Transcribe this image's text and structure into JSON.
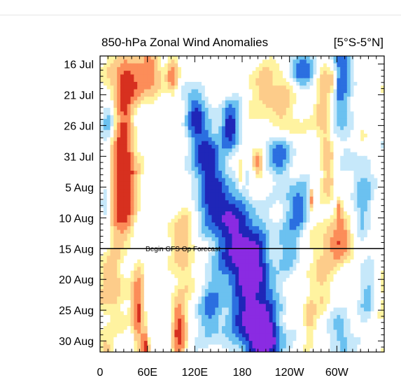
{
  "chart_data": {
    "type": "heatmap",
    "title": "850-hPa Zonal Wind Anomalies",
    "region_label": "[5°S-5°N]",
    "xlabel": "",
    "ylabel": "",
    "x_ticks": [
      {
        "lon": 0,
        "label": "0"
      },
      {
        "lon": 60,
        "label": "60E"
      },
      {
        "lon": 120,
        "label": "120E"
      },
      {
        "lon": 180,
        "label": "180"
      },
      {
        "lon": 240,
        "label": "120W"
      },
      {
        "lon": 300,
        "label": "60W"
      }
    ],
    "y_ticks": [
      {
        "day": 0,
        "label": "16 Jul"
      },
      {
        "day": 5,
        "label": "21 Jul"
      },
      {
        "day": 10,
        "label": "26 Jul"
      },
      {
        "day": 15,
        "label": "31 Jul"
      },
      {
        "day": 20,
        "label": "5 Aug"
      },
      {
        "day": 25,
        "label": "10 Aug"
      },
      {
        "day": 30,
        "label": "15 Aug"
      },
      {
        "day": 35,
        "label": "20 Aug"
      },
      {
        "day": 40,
        "label": "25 Aug"
      },
      {
        "day": 45,
        "label": "30 Aug"
      }
    ],
    "xlim": [
      0,
      360
    ],
    "ylim": [
      0,
      48
    ],
    "annotation": {
      "day": 30,
      "text": "Begin GFS Op Forecast"
    },
    "colors": {
      "strong_westerly": "#d7301f",
      "westerly": "#fc8d59",
      "weak_westerly": "#fdcc8a",
      "slight_westerly": "#fff3a0",
      "neutral": "#ffffff",
      "slight_easterly": "#c6e8fa",
      "weak_easterly": "#6bc1f0",
      "easterly": "#2b6fe0",
      "strong_easterly": "#1f26b8",
      "extreme_easterly": "#8a2be2"
    },
    "anomaly_blobs": [
      {
        "lon": 35,
        "day": 3,
        "rlon": 22,
        "rday": 4,
        "amp": 1.8
      },
      {
        "lon": 30,
        "day": 9,
        "rlon": 8,
        "rday": 7,
        "amp": 1.0
      },
      {
        "lon": 65,
        "day": 1,
        "rlon": 12,
        "rday": 4,
        "amp": 1.2
      },
      {
        "lon": 30,
        "day": 18,
        "rlon": 14,
        "rday": 7,
        "amp": 2.5
      },
      {
        "lon": 25,
        "day": 24,
        "rlon": 16,
        "rday": 4,
        "amp": 1.1
      },
      {
        "lon": 15,
        "day": 36,
        "rlon": 16,
        "rday": 6,
        "amp": 0.9
      },
      {
        "lon": 48,
        "day": 40,
        "rlon": 7,
        "rday": 6,
        "amp": 1.8
      },
      {
        "lon": 57,
        "day": 46,
        "rlon": 4,
        "rday": 3,
        "amp": 1.8
      },
      {
        "lon": 7,
        "day": 47,
        "rlon": 8,
        "rday": 3,
        "amp": 0.9
      },
      {
        "lon": 100,
        "day": 43,
        "rlon": 8,
        "rday": 5,
        "amp": 2.0
      },
      {
        "lon": 92,
        "day": 2,
        "rlon": 7,
        "rday": 3,
        "amp": 1.2
      },
      {
        "lon": 200,
        "day": 16,
        "rlon": 7,
        "rday": 2,
        "amp": 1.4
      },
      {
        "lon": 178,
        "day": 18,
        "rlon": 4,
        "rday": 2,
        "amp": 0.8
      },
      {
        "lon": 268,
        "day": 22,
        "rlon": 3,
        "rday": 2,
        "amp": 1.3
      },
      {
        "lon": 284,
        "day": 7,
        "rlon": 10,
        "rday": 8,
        "amp": 1.0
      },
      {
        "lon": 280,
        "day": 33,
        "rlon": 15,
        "rday": 7,
        "amp": 0.7
      },
      {
        "lon": 290,
        "day": 18,
        "rlon": 8,
        "rday": 6,
        "amp": 0.6
      },
      {
        "lon": 265,
        "day": 41,
        "rlon": 7,
        "rday": 4,
        "amp": 0.7
      },
      {
        "lon": 295,
        "day": 3,
        "rlon": 6,
        "rday": 3,
        "amp": 1.0
      },
      {
        "lon": 305,
        "day": 29,
        "rlon": 15,
        "rday": 3,
        "amp": 1.6
      },
      {
        "lon": 303,
        "day": 24,
        "rlon": 4,
        "rday": 2,
        "amp": 1.5
      },
      {
        "lon": 305,
        "day": 2,
        "rlon": 15,
        "rday": 10,
        "amp": -1.2
      },
      {
        "lon": 305,
        "day": 44,
        "rlon": 14,
        "rday": 4,
        "amp": -0.8
      },
      {
        "lon": 225,
        "day": 32,
        "rlon": 16,
        "rday": 4,
        "amp": 0.8
      },
      {
        "lon": 110,
        "day": 35,
        "rlon": 10,
        "rday": 3,
        "amp": 0.6
      },
      {
        "lon": 105,
        "day": 28,
        "rlon": 18,
        "rday": 5,
        "amp": 0.8
      },
      {
        "lon": 220,
        "day": 4,
        "rlon": 30,
        "rday": 4,
        "amp": 0.8
      },
      {
        "lon": 230,
        "day": 10,
        "rlon": 24,
        "rday": 3,
        "amp": 0.7
      },
      {
        "lon": 195,
        "day": 41,
        "rlon": 28,
        "rday": 6,
        "amp": -2.2
      },
      {
        "lon": 210,
        "day": 45,
        "rlon": 18,
        "rday": 3,
        "amp": -1.8
      },
      {
        "lon": 190,
        "day": 33,
        "rlon": 35,
        "rday": 4,
        "amp": -1.6
      },
      {
        "lon": 180,
        "day": 28,
        "rlon": 28,
        "rday": 5,
        "amp": -1.5
      },
      {
        "lon": 150,
        "day": 23,
        "rlon": 25,
        "rday": 5,
        "amp": -1.6
      },
      {
        "lon": 135,
        "day": 15,
        "rlon": 16,
        "rday": 5,
        "amp": -1.7
      },
      {
        "lon": 120,
        "day": 8,
        "rlon": 12,
        "rday": 4,
        "amp": -1.5
      },
      {
        "lon": 165,
        "day": 10,
        "rlon": 12,
        "rday": 4,
        "amp": -1.6
      },
      {
        "lon": 225,
        "day": 14,
        "rlon": 16,
        "rday": 4,
        "amp": -1.3
      },
      {
        "lon": 250,
        "day": 23,
        "rlon": 16,
        "rday": 4,
        "amp": -1.2
      },
      {
        "lon": 255,
        "day": 1,
        "rlon": 16,
        "rday": 3,
        "amp": -1.4
      },
      {
        "lon": 235,
        "day": 30,
        "rlon": 16,
        "rday": 4,
        "amp": -1.0
      },
      {
        "lon": 8,
        "day": 22,
        "rlon": 8,
        "rday": 6,
        "amp": -0.7
      },
      {
        "lon": 10,
        "day": 9,
        "rlon": 9,
        "rday": 4,
        "amp": -0.6
      },
      {
        "lon": 140,
        "day": 40,
        "rlon": 16,
        "rday": 5,
        "amp": -1.0
      },
      {
        "lon": 332,
        "day": 20,
        "rlon": 12,
        "rday": 8,
        "amp": -0.8
      },
      {
        "lon": 338,
        "day": 37,
        "rlon": 10,
        "rday": 6,
        "amp": -0.6
      },
      {
        "lon": 330,
        "day": 12,
        "rlon": 10,
        "rday": 4,
        "amp": 0.5
      }
    ]
  }
}
